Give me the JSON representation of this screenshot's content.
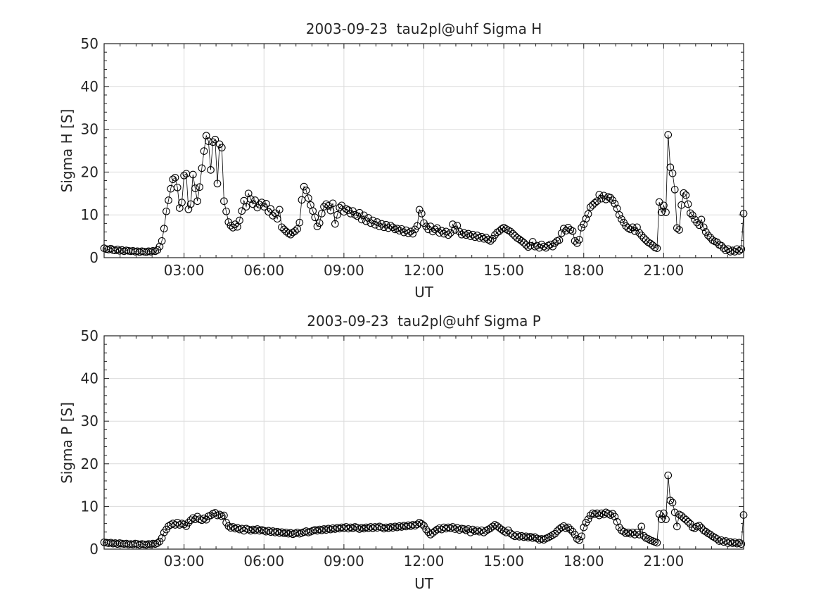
{
  "figure": {
    "background": "#ffffff",
    "text_color": "#262626",
    "axis_color": "#1f1f1f",
    "grid_color": "#dbdbdb",
    "marker_color": "#000000"
  },
  "chart_data": [
    {
      "type": "line",
      "title": "2003-09-23  tau2pl@uhf Sigma H",
      "xlabel": "UT",
      "ylabel": "Sigma H [S]",
      "xlim_hours": [
        0,
        24
      ],
      "ylim": [
        0,
        50
      ],
      "x_major_tick_hours": [
        3,
        6,
        9,
        12,
        15,
        18,
        21
      ],
      "x_tick_labels": [
        "03:00",
        "06:00",
        "09:00",
        "12:00",
        "15:00",
        "18:00",
        "21:00"
      ],
      "y_major_ticks": [
        0,
        10,
        20,
        30,
        40,
        50
      ],
      "y_tick_labels": [
        "0",
        "10",
        "20",
        "30",
        "40",
        "50"
      ],
      "x_minor_interval_hours": 0.6,
      "y_minor_interval": 2,
      "grid": true,
      "marker": "open-circle",
      "sample_interval_minutes": 5,
      "start_hour": 0,
      "values": [
        2.2,
        2.0,
        1.9,
        2.1,
        1.8,
        1.7,
        1.9,
        1.6,
        1.8,
        1.5,
        1.7,
        1.6,
        1.5,
        1.6,
        1.4,
        1.5,
        1.3,
        1.5,
        1.4,
        1.3,
        1.5,
        1.4,
        1.6,
        1.5,
        1.8,
        2.6,
        3.9,
        6.8,
        10.8,
        13.4,
        16.1,
        18.3,
        18.7,
        16.4,
        11.6,
        12.9,
        19.2,
        19.6,
        11.3,
        12.5,
        19.4,
        16.2,
        13.2,
        16.5,
        20.9,
        24.9,
        28.5,
        27.2,
        20.5,
        27.0,
        27.6,
        17.3,
        26.5,
        25.7,
        13.2,
        10.8,
        8.3,
        7.5,
        7.0,
        7.8,
        7.2,
        8.7,
        10.9,
        13.3,
        11.9,
        15.0,
        13.7,
        12.5,
        13.4,
        11.7,
        12.4,
        12.9,
        11.9,
        12.6,
        10.7,
        11.4,
        9.8,
        10.4,
        9.1,
        11.2,
        7.1,
        6.6,
        6.1,
        5.7,
        5.4,
        5.9,
        6.2,
        6.7,
        8.2,
        13.5,
        16.6,
        15.7,
        13.9,
        12.3,
        10.9,
        9.4,
        7.3,
        8.1,
        10.3,
        11.9,
        12.5,
        12.1,
        11.0,
        12.7,
        7.9,
        10.0,
        11.7,
        12.2,
        10.7,
        11.4,
        11.1,
        10.3,
        10.9,
        10.0,
        9.7,
        10.5,
        8.9,
        9.9,
        8.5,
        9.3,
        8.1,
        8.7,
        7.7,
        8.3,
        7.3,
        7.9,
        7.1,
        7.7,
        6.9,
        7.5,
        7.1,
        6.6,
        6.8,
        6.3,
        6.7,
        5.9,
        6.4,
        5.7,
        6.1,
        5.6,
        6.6,
        7.4,
        11.2,
        10.3,
        8.1,
        7.3,
        6.6,
        7.3,
        6.1,
        6.6,
        6.9,
        5.8,
        6.3,
        5.6,
        6.1,
        5.3,
        5.8,
        7.8,
        6.5,
        7.5,
        6.1,
        5.4,
        5.8,
        5.3,
        5.6,
        5.0,
        5.4,
        4.8,
        5.2,
        4.6,
        4.9,
        4.4,
        4.7,
        4.2,
        3.9,
        4.4,
        5.3,
        5.9,
        6.2,
        6.7,
        7.0,
        6.7,
        6.4,
        6.1,
        5.6,
        5.1,
        4.6,
        4.3,
        3.9,
        3.5,
        3.0,
        2.5,
        2.8,
        3.7,
        2.6,
        2.8,
        2.3,
        3.1,
        2.6,
        2.3,
        2.8,
        3.1,
        2.6,
        3.4,
        3.9,
        4.1,
        5.7,
        6.8,
        6.3,
        7.0,
        6.5,
        6.2,
        3.9,
        3.4,
        4.2,
        7.0,
        7.8,
        9.1,
        10.2,
        11.8,
        12.3,
        12.8,
        13.2,
        14.7,
        13.8,
        14.5,
        13.6,
        14.2,
        14.0,
        13.4,
        12.6,
        11.5,
        10.0,
        9.0,
        8.2,
        7.4,
        6.9,
        6.6,
        7.1,
        6.2,
        7.1,
        5.8,
        5.2,
        4.6,
        4.1,
        3.6,
        3.3,
        2.9,
        2.4,
        2.2,
        13.0,
        10.6,
        12.2,
        10.6,
        28.7,
        21.1,
        19.7,
        15.9,
        6.9,
        6.5,
        12.3,
        15.1,
        14.6,
        12.5,
        10.4,
        9.9,
        8.9,
        8.2,
        7.6,
        8.9,
        7.1,
        6.0,
        5.2,
        4.7,
        4.1,
        3.8,
        3.6,
        3.0,
        2.8,
        2.2,
        1.7,
        2.0,
        1.4,
        1.7,
        1.4,
        2.0,
        1.6,
        2.0,
        10.3
      ]
    },
    {
      "type": "line",
      "title": "2003-09-23  tau2pl@uhf Sigma P",
      "xlabel": "UT",
      "ylabel": "Sigma P [S]",
      "xlim_hours": [
        0,
        24
      ],
      "ylim": [
        0,
        50
      ],
      "x_major_tick_hours": [
        3,
        6,
        9,
        12,
        15,
        18,
        21
      ],
      "x_tick_labels": [
        "03:00",
        "06:00",
        "09:00",
        "12:00",
        "15:00",
        "18:00",
        "21:00"
      ],
      "y_major_ticks": [
        0,
        10,
        20,
        30,
        40,
        50
      ],
      "y_tick_labels": [
        "0",
        "10",
        "20",
        "30",
        "40",
        "50"
      ],
      "x_minor_interval_hours": 0.6,
      "y_minor_interval": 2,
      "grid": true,
      "marker": "open-circle",
      "sample_interval_minutes": 5,
      "start_hour": 0,
      "values": [
        1.6,
        1.5,
        1.4,
        1.5,
        1.3,
        1.4,
        1.2,
        1.4,
        1.3,
        1.2,
        1.3,
        1.1,
        1.2,
        1.1,
        1.3,
        1.2,
        1.0,
        1.2,
        1.1,
        1.0,
        1.2,
        1.1,
        1.3,
        1.2,
        1.4,
        1.8,
        2.6,
        3.9,
        4.6,
        5.4,
        5.7,
        6.0,
        5.7,
        6.2,
        5.7,
        6.0,
        5.8,
        5.4,
        6.2,
        6.8,
        7.3,
        7.0,
        7.6,
        7.0,
        6.8,
        7.2,
        6.9,
        7.7,
        7.9,
        8.3,
        8.5,
        7.9,
        8.1,
        7.7,
        7.9,
        6.2,
        5.4,
        5.0,
        5.2,
        4.8,
        5.0,
        4.6,
        4.8,
        4.3,
        4.8,
        4.6,
        4.3,
        4.6,
        4.4,
        4.7,
        4.3,
        4.5,
        4.3,
        4.1,
        4.3,
        4.0,
        4.2,
        3.9,
        4.1,
        3.8,
        4.0,
        3.7,
        3.9,
        3.6,
        3.8,
        3.5,
        3.7,
        3.9,
        3.6,
        3.8,
        4.0,
        4.2,
        3.9,
        4.1,
        4.3,
        4.5,
        4.3,
        4.6,
        4.4,
        4.7,
        4.5,
        4.8,
        4.6,
        4.9,
        4.7,
        5.0,
        4.8,
        5.1,
        4.9,
        5.2,
        4.8,
        5.1,
        4.9,
        5.2,
        5.0,
        4.7,
        5.0,
        4.8,
        5.1,
        4.9,
        5.2,
        4.9,
        5.2,
        5.0,
        5.3,
        5.1,
        4.8,
        5.1,
        4.9,
        5.2,
        5.0,
        5.3,
        5.1,
        5.4,
        5.2,
        5.5,
        5.3,
        5.6,
        5.4,
        5.7,
        5.5,
        5.8,
        6.2,
        5.9,
        5.5,
        4.6,
        4.0,
        3.4,
        3.8,
        4.2,
        4.6,
        4.9,
        4.6,
        5.1,
        4.8,
        5.1,
        4.9,
        5.2,
        4.7,
        5.0,
        4.5,
        4.8,
        4.7,
        4.4,
        4.7,
        3.9,
        4.6,
        4.2,
        4.4,
        4.1,
        4.4,
        3.9,
        4.3,
        4.6,
        4.9,
        5.3,
        5.7,
        5.4,
        5.0,
        4.6,
        4.2,
        3.9,
        4.4,
        3.7,
        3.3,
        3.0,
        3.3,
        2.9,
        3.1,
        2.8,
        3.0,
        2.7,
        2.9,
        2.6,
        2.8,
        2.5,
        2.2,
        2.4,
        2.2,
        2.5,
        2.7,
        3.0,
        3.3,
        3.6,
        4.2,
        4.7,
        5.1,
        5.4,
        4.9,
        5.1,
        4.6,
        4.1,
        3.4,
        2.4,
        2.1,
        3.0,
        5.1,
        6.2,
        7.0,
        7.9,
        8.4,
        8.2,
        8.4,
        7.9,
        8.4,
        8.1,
        8.6,
        8.3,
        8.0,
        8.3,
        7.6,
        6.4,
        5.1,
        4.4,
        4.1,
        3.7,
        3.9,
        3.6,
        3.9,
        3.4,
        3.9,
        3.4,
        5.3,
        3.1,
        2.6,
        2.4,
        2.1,
        1.9,
        1.7,
        1.5,
        8.2,
        7.0,
        8.4,
        7.0,
        17.3,
        11.4,
        10.9,
        8.6,
        5.3,
        8.1,
        7.8,
        7.3,
        6.9,
        6.4,
        5.9,
        5.1,
        4.9,
        5.3,
        5.5,
        5.0,
        4.4,
        4.1,
        3.7,
        3.4,
        3.0,
        2.7,
        2.4,
        1.9,
        2.1,
        1.7,
        1.9,
        1.4,
        1.7,
        1.4,
        1.6,
        1.3,
        1.5,
        1.2,
        8.0
      ]
    }
  ]
}
